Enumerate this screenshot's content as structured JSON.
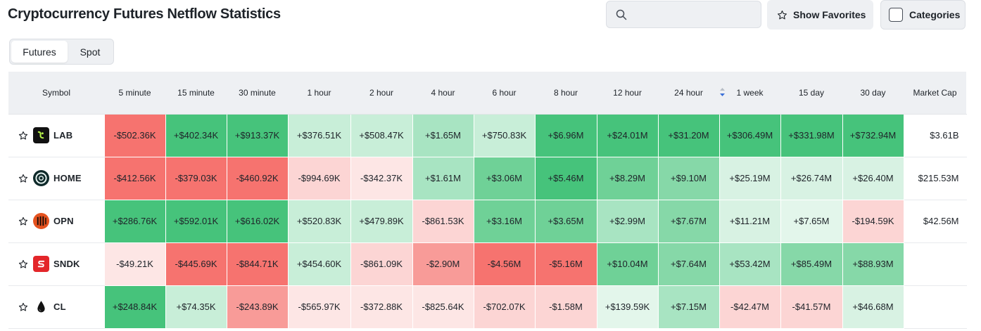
{
  "header": {
    "title": "Cryptocurrency Futures Netflow Statistics",
    "search_placeholder": "",
    "show_favorites_label": "Show Favorites",
    "categories_label": "Categories"
  },
  "tabs": [
    {
      "label": "Futures",
      "active": true
    },
    {
      "label": "Spot",
      "active": false
    }
  ],
  "table": {
    "columns": [
      "Symbol",
      "5 minute",
      "15 minute",
      "30 minute",
      "1 hour",
      "2 hour",
      "4 hour",
      "6 hour",
      "8 hour",
      "12 hour",
      "24 hour",
      "1 week",
      "15 day",
      "30 day",
      "Market Cap"
    ],
    "sorted_column": "24 hour",
    "rows": [
      {
        "symbol": "LAB",
        "icon": "lab-icon",
        "values": [
          "-$502.36K",
          "+$402.34K",
          "+$913.37K",
          "+$376.51K",
          "+$508.47K",
          "+$1.65M",
          "+$750.83K",
          "+$6.96M",
          "+$24.01M",
          "+$31.20M",
          "+$306.49M",
          "+$331.98M",
          "+$732.94M"
        ],
        "market_cap": "$3.61B"
      },
      {
        "symbol": "HOME",
        "icon": "home-icon",
        "values": [
          "-$412.56K",
          "-$379.03K",
          "-$460.92K",
          "-$994.69K",
          "-$342.37K",
          "+$1.61M",
          "+$3.06M",
          "+$5.46M",
          "+$8.29M",
          "+$9.10M",
          "+$25.19M",
          "+$26.74M",
          "+$26.40M"
        ],
        "market_cap": "$215.53M"
      },
      {
        "symbol": "OPN",
        "icon": "opn-icon",
        "values": [
          "+$286.76K",
          "+$592.01K",
          "+$616.02K",
          "+$520.83K",
          "+$479.89K",
          "-$861.53K",
          "+$3.16M",
          "+$3.65M",
          "+$2.99M",
          "+$7.67M",
          "+$11.21M",
          "+$7.65M",
          "-$194.59K"
        ],
        "market_cap": "$42.56M"
      },
      {
        "symbol": "SNDK",
        "icon": "sndk-icon",
        "values": [
          "-$49.21K",
          "-$445.69K",
          "-$844.71K",
          "+$454.60K",
          "-$861.09K",
          "-$2.90M",
          "-$4.56M",
          "-$5.16M",
          "+$10.04M",
          "+$7.64M",
          "+$53.42M",
          "+$85.49M",
          "+$88.93M"
        ],
        "market_cap": ""
      },
      {
        "symbol": "CL",
        "icon": "cl-icon",
        "values": [
          "+$248.84K",
          "+$74.35K",
          "-$243.89K",
          "-$565.97K",
          "-$372.88K",
          "-$825.64K",
          "-$702.07K",
          "-$1.58M",
          "+$139.59K",
          "+$7.15M",
          "-$42.47M",
          "-$41.57M",
          "+$46.68M"
        ],
        "market_cap": ""
      }
    ],
    "cell_colors": [
      [
        "#f6736f",
        "#46c37b",
        "#46c37b",
        "#c8eed8",
        "#c8eed8",
        "#a8e4c2",
        "#c8eed8",
        "#46c37b",
        "#46c37b",
        "#46c37b",
        "#46c37b",
        "#46c37b",
        "#46c37b"
      ],
      [
        "#f6736f",
        "#f6736f",
        "#f6736f",
        "#fcd5d4",
        "#fde6e5",
        "#a8e4c2",
        "#6fd197",
        "#46c37b",
        "#6fd197",
        "#86d8a8",
        "#d8f2e3",
        "#d8f2e3",
        "#d8f2e3"
      ],
      [
        "#46c37b",
        "#46c37b",
        "#46c37b",
        "#c8eed8",
        "#c8eed8",
        "#fcd5d4",
        "#6fd197",
        "#6fd197",
        "#a8e4c2",
        "#86d8a8",
        "#d8f2e3",
        "#e3f6eb",
        "#fcd5d4"
      ],
      [
        "#fde6e5",
        "#f6736f",
        "#f6736f",
        "#c8eed8",
        "#fcd5d4",
        "#f89b98",
        "#f6736f",
        "#f6736f",
        "#6fd197",
        "#86d8a8",
        "#a8e4c2",
        "#86d8a8",
        "#86d8a8"
      ],
      [
        "#46c37b",
        "#c8eed8",
        "#f89b98",
        "#fde6e5",
        "#fde6e5",
        "#fde6e5",
        "#fcd5d4",
        "#fcd5d4",
        "#e3f6eb",
        "#a8e4c2",
        "#fcd5d4",
        "#fcd5d4",
        "#d8f2e3"
      ]
    ]
  }
}
